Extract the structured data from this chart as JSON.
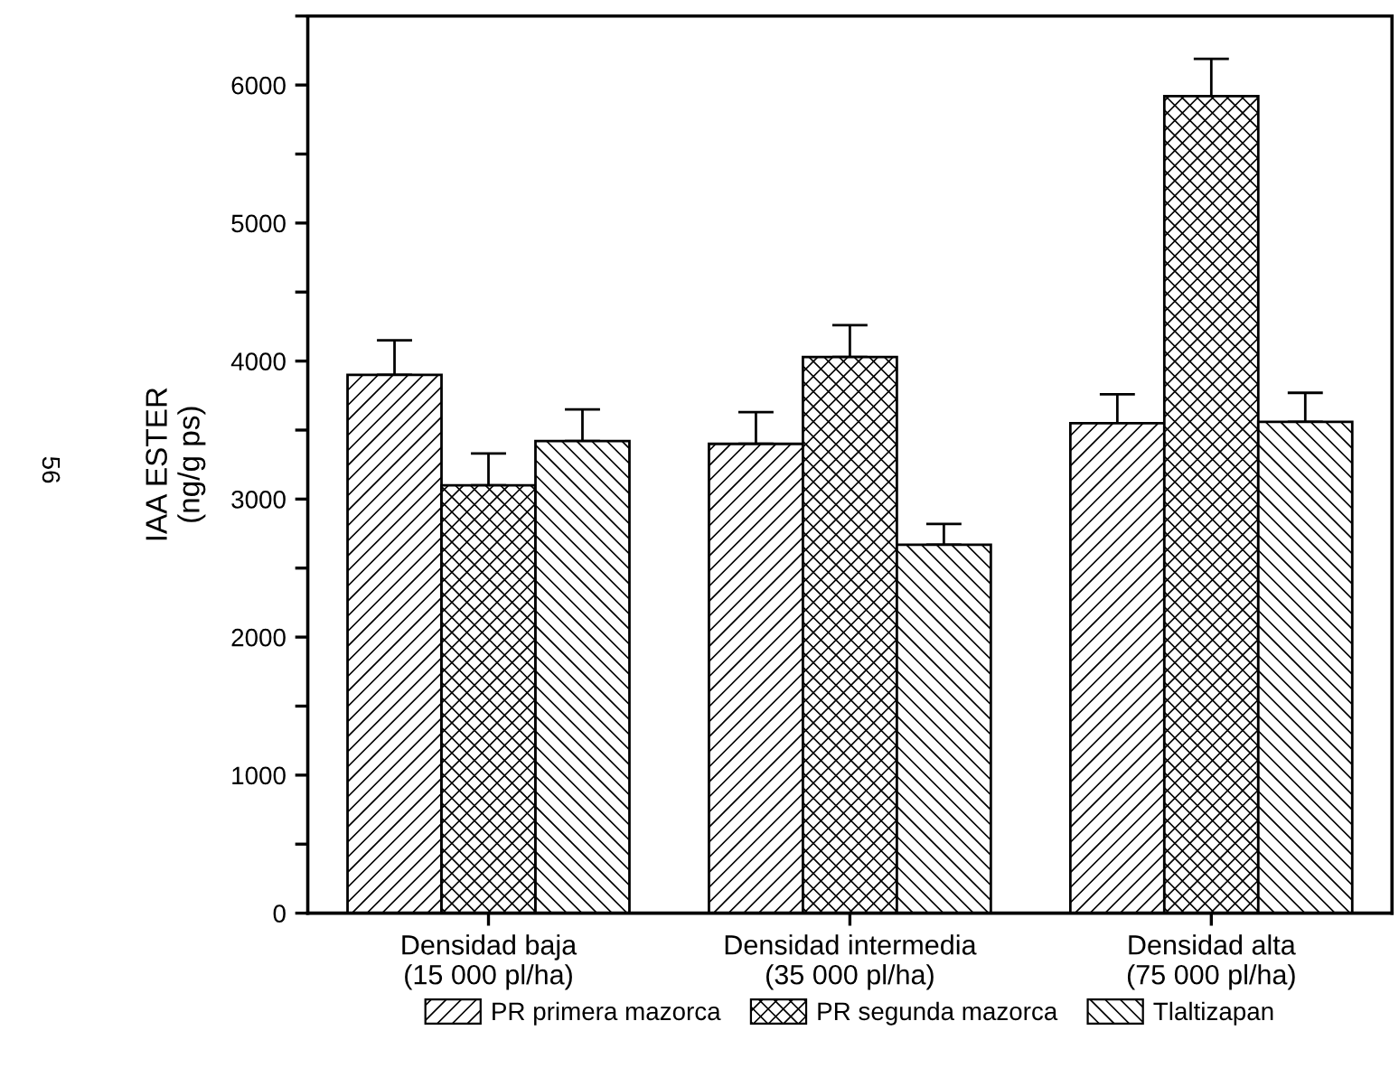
{
  "chart_data": {
    "type": "bar",
    "ylabel": "IAA ESTER\n(ng/g ps)",
    "categories": [
      "Densidad baja\n(15 000 pl/ha)",
      "Densidad intermedia\n(35 000 pl/ha)",
      "Densidad alta\n(75 000 pl/ha)"
    ],
    "series": [
      {
        "name": "PR primera mazorca",
        "color": "#000000",
        "values": [
          3900,
          3400,
          3550
        ],
        "errors": [
          250,
          230,
          210
        ]
      },
      {
        "name": "PR segunda mazorca",
        "color": "#000000",
        "values": [
          3100,
          4030,
          5920
        ],
        "errors": [
          230,
          230,
          270
        ]
      },
      {
        "name": "Tlaltizapan",
        "color": "#000000",
        "values": [
          3420,
          2670,
          3560
        ],
        "errors": [
          230,
          150,
          210
        ]
      }
    ],
    "ylim": [
      0,
      6500
    ],
    "yticks": [
      0,
      {
        "value": 500,
        "label": null
      },
      1000,
      {
        "value": 1500,
        "label": null
      },
      2000,
      {
        "value": 2500,
        "label": null
      },
      3000,
      {
        "value": 3500,
        "label": null
      },
      4000,
      {
        "value": 4500,
        "label": null
      },
      5000,
      {
        "value": 5500,
        "label": null
      },
      6000,
      {
        "value": 6500,
        "label": null
      }
    ],
    "legend": "bottom",
    "grid": false,
    "annotations": [
      "56"
    ]
  }
}
